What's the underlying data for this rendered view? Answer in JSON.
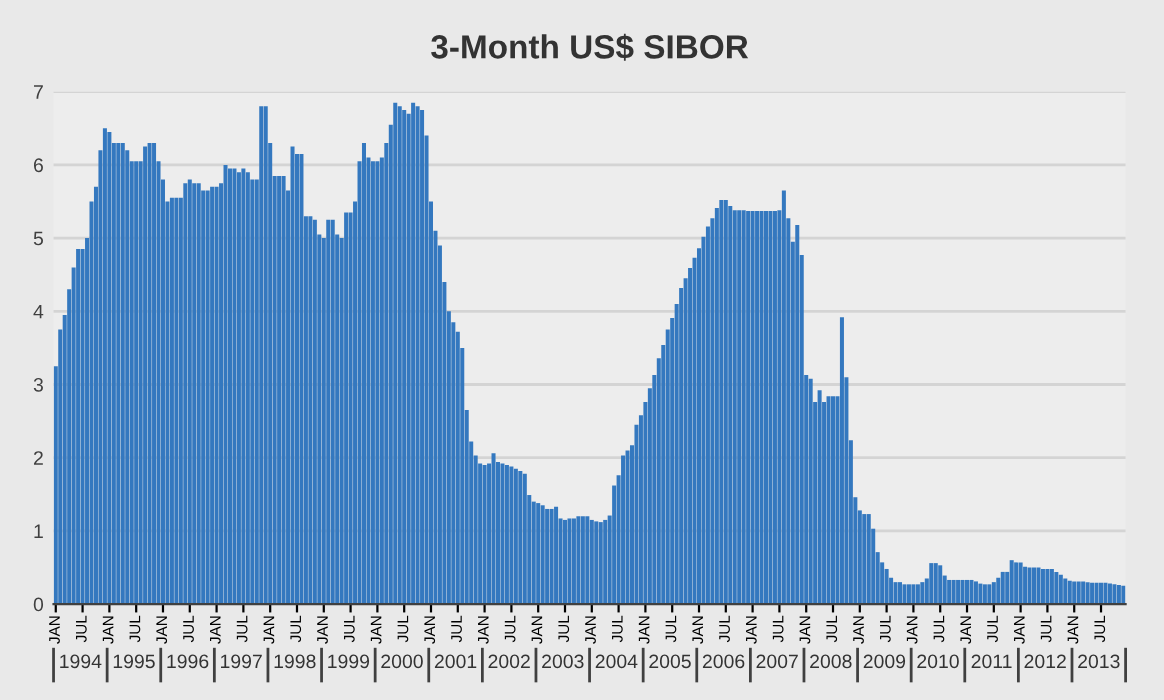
{
  "chart_data": {
    "type": "bar",
    "title": "3-Month US$ SIBOR",
    "categories": [
      "JAN",
      null,
      null,
      null,
      null,
      null,
      "JUL",
      null,
      null,
      null,
      null,
      null,
      "JAN",
      null,
      null,
      null,
      null,
      null,
      "JUL",
      null,
      null,
      null,
      null,
      null,
      "JAN",
      null,
      null,
      null,
      null,
      null,
      "JUL",
      null,
      null,
      null,
      null,
      null,
      "JAN",
      null,
      null,
      null,
      null,
      null,
      "JUL",
      null,
      null,
      null,
      null,
      null,
      "JAN",
      null,
      null,
      null,
      null,
      null,
      "JUL",
      null,
      null,
      null,
      null,
      null,
      "JAN",
      null,
      null,
      null,
      null,
      null,
      "JUL",
      null,
      null,
      null,
      null,
      null,
      "JAN",
      null,
      null,
      null,
      null,
      null,
      "JUL",
      null,
      null,
      null,
      null,
      null,
      "JAN",
      null,
      null,
      null,
      null,
      null,
      "JUL",
      null,
      null,
      null,
      null,
      null,
      "JAN",
      null,
      null,
      null,
      null,
      null,
      "JUL",
      null,
      null,
      null,
      null,
      null,
      "JAN",
      null,
      null,
      null,
      null,
      null,
      "JUL",
      null,
      null,
      null,
      null,
      null,
      "JAN",
      null,
      null,
      null,
      null,
      null,
      "JUL",
      null,
      null,
      null,
      null,
      null,
      "JAN",
      null,
      null,
      null,
      null,
      null,
      "JUL",
      null,
      null,
      null,
      null,
      null,
      "JAN",
      null,
      null,
      null,
      null,
      null,
      "JUL",
      null,
      null,
      null,
      null,
      null,
      "JAN",
      null,
      null,
      null,
      null,
      null,
      "JUL",
      null,
      null,
      null,
      null,
      null,
      "JAN",
      null,
      null,
      null,
      null,
      null,
      "JUL",
      null,
      null,
      null,
      null,
      null,
      "JAN",
      null,
      null,
      null,
      null,
      null,
      "JUL",
      null,
      null,
      null,
      null,
      null,
      "JAN",
      null,
      null,
      null,
      null,
      null,
      "JUL",
      null,
      null,
      null,
      null,
      null,
      "JAN",
      null,
      null,
      null,
      null,
      null,
      "JUL",
      null,
      null,
      null,
      null,
      null,
      "JAN",
      null,
      null,
      null,
      null,
      null,
      "JUL",
      null,
      null,
      null,
      null,
      null,
      "JAN",
      null,
      null,
      null,
      null,
      null,
      "JUL",
      null,
      null,
      null,
      null,
      null
    ],
    "values": [
      3.25,
      3.75,
      3.95,
      4.3,
      4.6,
      4.85,
      4.85,
      5.0,
      5.5,
      5.7,
      6.2,
      6.5,
      6.45,
      6.3,
      6.3,
      6.3,
      6.2,
      6.05,
      6.05,
      6.05,
      6.25,
      6.3,
      6.3,
      6.05,
      5.8,
      5.5,
      5.55,
      5.55,
      5.55,
      5.75,
      5.8,
      5.75,
      5.75,
      5.65,
      5.65,
      5.7,
      5.7,
      5.75,
      6.0,
      5.95,
      5.95,
      5.9,
      5.95,
      5.9,
      5.8,
      5.8,
      6.8,
      6.8,
      6.3,
      5.85,
      5.85,
      5.85,
      5.65,
      6.25,
      6.15,
      6.15,
      5.3,
      5.3,
      5.25,
      5.05,
      5.0,
      5.25,
      5.25,
      5.05,
      5.0,
      5.35,
      5.35,
      5.5,
      6.05,
      6.3,
      6.1,
      6.05,
      6.05,
      6.1,
      6.3,
      6.55,
      6.85,
      6.8,
      6.75,
      6.7,
      6.85,
      6.8,
      6.75,
      6.4,
      5.5,
      5.1,
      4.9,
      4.4,
      4.0,
      3.85,
      3.72,
      3.5,
      2.65,
      2.22,
      2.03,
      1.92,
      1.9,
      1.92,
      2.06,
      1.94,
      1.92,
      1.9,
      1.88,
      1.85,
      1.82,
      1.78,
      1.49,
      1.4,
      1.38,
      1.35,
      1.3,
      1.3,
      1.33,
      1.17,
      1.15,
      1.17,
      1.17,
      1.2,
      1.2,
      1.2,
      1.15,
      1.13,
      1.12,
      1.15,
      1.21,
      1.62,
      1.76,
      2.03,
      2.1,
      2.17,
      2.45,
      2.58,
      2.76,
      2.95,
      3.13,
      3.36,
      3.54,
      3.75,
      3.91,
      4.1,
      4.32,
      4.45,
      4.59,
      4.73,
      4.86,
      5.02,
      5.16,
      5.27,
      5.41,
      5.52,
      5.52,
      5.44,
      5.38,
      5.38,
      5.38,
      5.37,
      5.37,
      5.37,
      5.37,
      5.37,
      5.37,
      5.37,
      5.38,
      5.65,
      5.27,
      4.95,
      5.18,
      4.77,
      3.13,
      3.08,
      2.76,
      2.92,
      2.76,
      2.84,
      2.84,
      2.84,
      3.92,
      3.1,
      2.24,
      1.46,
      1.28,
      1.23,
      1.23,
      1.03,
      0.71,
      0.57,
      0.48,
      0.36,
      0.3,
      0.3,
      0.27,
      0.27,
      0.27,
      0.27,
      0.3,
      0.35,
      0.56,
      0.56,
      0.53,
      0.39,
      0.33,
      0.33,
      0.33,
      0.33,
      0.33,
      0.33,
      0.31,
      0.28,
      0.27,
      0.27,
      0.3,
      0.36,
      0.44,
      0.44,
      0.6,
      0.57,
      0.57,
      0.51,
      0.5,
      0.5,
      0.5,
      0.48,
      0.48,
      0.48,
      0.44,
      0.4,
      0.35,
      0.32,
      0.31,
      0.31,
      0.31,
      0.3,
      0.29,
      0.29,
      0.29,
      0.29,
      0.28,
      0.27,
      0.26,
      0.25
    ],
    "color": "#3478bf",
    "ylim": [
      0,
      7
    ],
    "yticks": [
      0,
      1,
      2,
      3,
      4,
      5,
      6,
      7
    ],
    "grid": "y",
    "annotations": [
      "1994",
      "1995",
      "1996",
      "1997",
      "1998",
      "1999",
      "2000",
      "2001",
      "2002",
      "2003",
      "2004",
      "2005",
      "2006",
      "2007",
      "2008",
      "2009",
      "2010",
      "2011",
      "2012",
      "2013"
    ]
  }
}
